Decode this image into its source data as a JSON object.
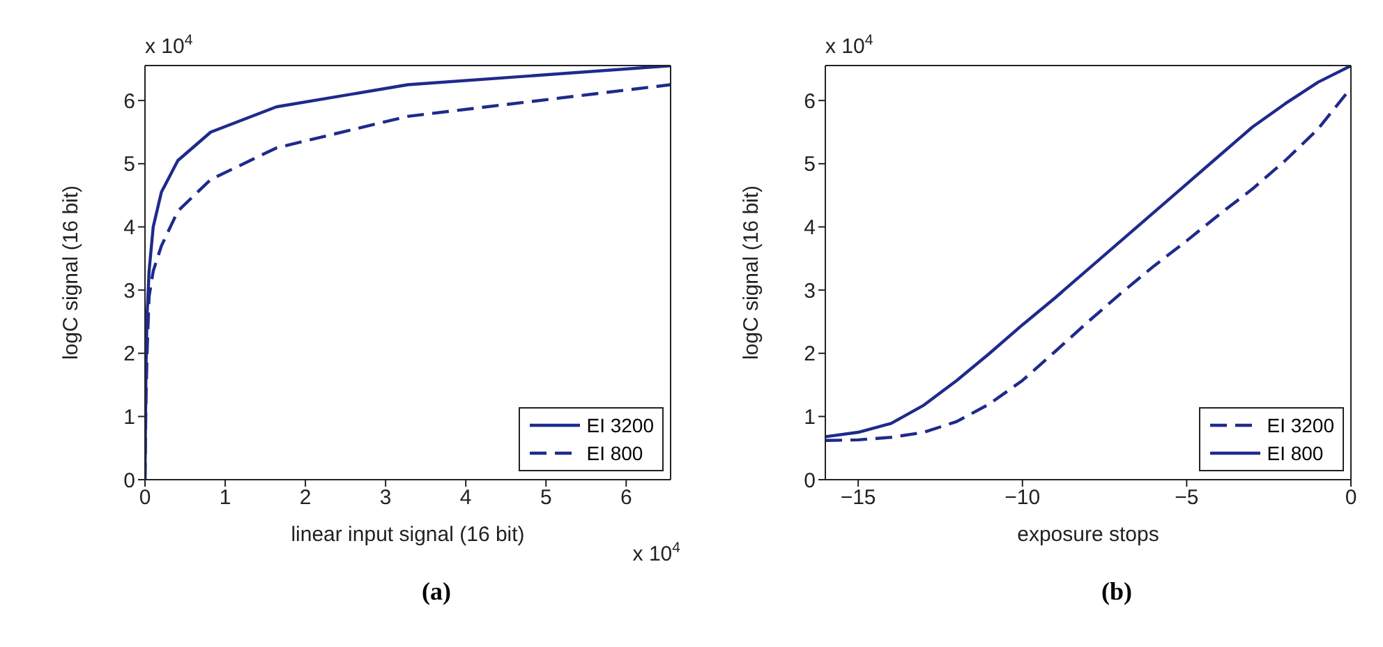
{
  "chart_data": [
    {
      "type": "line",
      "title": "(a)",
      "xlabel": "linear input signal (16 bit)",
      "ylabel": "logC signal (16 bit)",
      "annotations": [
        "x 10$^{4}$",
        "x 10$^{4}$"
      ],
      "xlim": [
        0,
        6.5536
      ],
      "xticks": [
        0,
        1,
        2,
        3,
        4,
        5,
        6
      ],
      "ylim": [
        0,
        6.5536
      ],
      "yticks": [
        0,
        1,
        2,
        3,
        4,
        5,
        6
      ],
      "legend": "bottom right",
      "series": [
        {
          "name": "EI 3200",
          "color": "#1f2a8c",
          "line_style": "solid",
          "x": [
            0,
            0.0128,
            0.0256,
            0.0512,
            0.1024,
            0.2048,
            0.4096,
            0.8192,
            1.6384,
            3.2768,
            6.5536
          ],
          "values": [
            0,
            1.8,
            2.6,
            3.3,
            4.0,
            4.55,
            5.05,
            5.5,
            5.9,
            6.25,
            6.55
          ]
        },
        {
          "name": "EI 800",
          "color": "#1f2a8c",
          "line_style": "dashed",
          "x": [
            0,
            0.0128,
            0.0256,
            0.0512,
            0.1024,
            0.2048,
            0.4096,
            0.8192,
            1.6384,
            3.2768,
            6.5536
          ],
          "values": [
            0,
            1.3,
            2.0,
            2.9,
            3.3,
            3.7,
            4.25,
            4.75,
            5.25,
            5.75,
            6.25
          ]
        }
      ]
    },
    {
      "type": "line",
      "title": "(b)",
      "xlabel": "exposure stops",
      "ylabel": "logC signal (16 bit)",
      "annotations": [
        "x 10$^{4}$"
      ],
      "xlim": [
        -16,
        0
      ],
      "xticks": [
        {
          "value": -15,
          "label": "−15"
        },
        {
          "value": -10,
          "label": "−10"
        },
        {
          "value": -5,
          "label": "−5"
        },
        0
      ],
      "ylim": [
        0,
        6.5536
      ],
      "yticks": [
        0,
        1,
        2,
        3,
        4,
        5,
        6
      ],
      "legend": "bottom right",
      "series": [
        {
          "name": "EI 3200",
          "color": "#1f2a8c",
          "line_style": "dashed",
          "x": [
            -16,
            -15,
            -14,
            -13,
            -12,
            -11,
            -10,
            -9,
            -8,
            -7,
            -6,
            -5,
            -4,
            -3,
            -2,
            -1,
            0
          ],
          "values": [
            0.62,
            0.63,
            0.67,
            0.75,
            0.92,
            1.2,
            1.57,
            2.03,
            2.5,
            2.95,
            3.38,
            3.78,
            4.2,
            4.6,
            5.05,
            5.55,
            6.2
          ]
        },
        {
          "name": "EI 800",
          "color": "#1f2a8c",
          "line_style": "solid",
          "x": [
            -16,
            -15,
            -14,
            -13,
            -12,
            -11,
            -10,
            -9,
            -8,
            -7,
            -6,
            -5,
            -4,
            -3,
            -2,
            -1,
            0
          ],
          "values": [
            0.68,
            0.75,
            0.89,
            1.18,
            1.57,
            2.0,
            2.45,
            2.88,
            3.33,
            3.78,
            4.23,
            4.68,
            5.13,
            5.58,
            5.95,
            6.29,
            6.55
          ]
        }
      ]
    }
  ]
}
